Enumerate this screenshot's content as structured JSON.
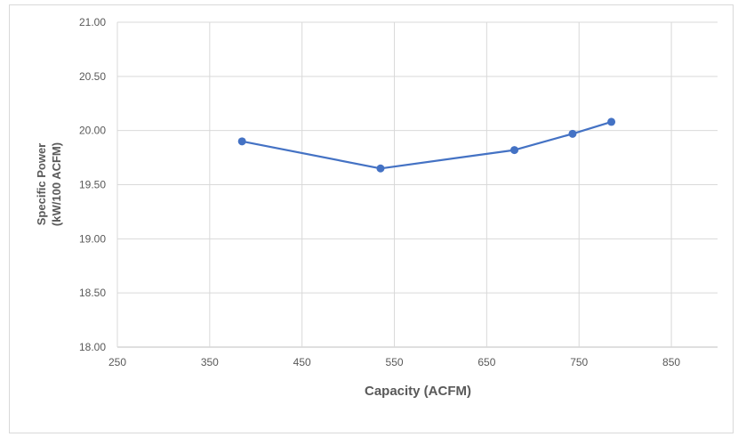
{
  "chart_data": {
    "type": "line",
    "title": "",
    "xlabel": "Capacity (ACFM)",
    "ylabel_lines": [
      "Specific Power",
      "(kW/100 ACFM)"
    ],
    "xlim": [
      250,
      900
    ],
    "ylim": [
      18.0,
      21.0
    ],
    "x_ticks": [
      250,
      350,
      450,
      550,
      650,
      750,
      850
    ],
    "y_ticks": [
      "18.00",
      "18.50",
      "19.00",
      "19.50",
      "20.00",
      "20.50",
      "21.00"
    ],
    "grid": true,
    "series": [
      {
        "color": "#4472c4",
        "x": [
          385,
          535,
          680,
          743,
          785
        ],
        "y": [
          19.9,
          19.65,
          19.82,
          19.97,
          20.08
        ]
      }
    ]
  }
}
